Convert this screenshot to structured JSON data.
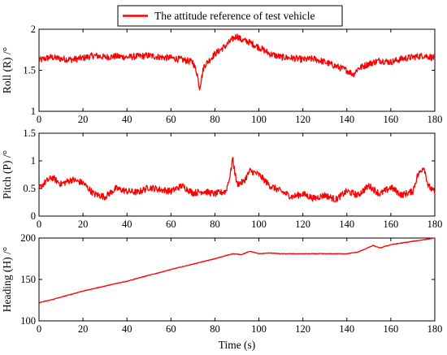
{
  "colors": {
    "series": "#ff0000",
    "axes": "#000000"
  },
  "legend": {
    "label": "The attitude reference of test vehicle",
    "placement": "top-center"
  },
  "xlabel": "Time (s)",
  "chart_data": [
    {
      "type": "line",
      "ylabel": "Roll (R) /°",
      "xlim": [
        0,
        180
      ],
      "ylim": [
        1,
        2
      ],
      "xticks": [
        "0",
        "20",
        "40",
        "60",
        "80",
        "100",
        "120",
        "140",
        "160",
        "180"
      ],
      "yticks": [
        "1",
        "1.5",
        "2"
      ],
      "series": [
        {
          "name": "The attitude reference of test vehicle",
          "x": [
            0,
            5,
            10,
            15,
            20,
            25,
            30,
            35,
            40,
            45,
            50,
            55,
            60,
            65,
            70,
            72,
            73,
            75,
            80,
            85,
            88,
            90,
            92,
            95,
            100,
            105,
            110,
            115,
            120,
            125,
            130,
            135,
            140,
            143,
            145,
            150,
            155,
            160,
            165,
            170,
            175,
            180
          ],
          "y": [
            1.62,
            1.66,
            1.64,
            1.63,
            1.65,
            1.68,
            1.66,
            1.67,
            1.66,
            1.67,
            1.68,
            1.66,
            1.65,
            1.63,
            1.6,
            1.45,
            1.28,
            1.55,
            1.7,
            1.8,
            1.88,
            1.92,
            1.87,
            1.85,
            1.78,
            1.7,
            1.66,
            1.65,
            1.63,
            1.64,
            1.6,
            1.55,
            1.5,
            1.45,
            1.52,
            1.58,
            1.62,
            1.6,
            1.64,
            1.66,
            1.68,
            1.65
          ]
        }
      ]
    },
    {
      "type": "line",
      "ylabel": "Pitch (P) /°",
      "xlim": [
        0,
        180
      ],
      "ylim": [
        0,
        1.5
      ],
      "xticks": [
        "0",
        "20",
        "40",
        "60",
        "80",
        "100",
        "120",
        "140",
        "160",
        "180"
      ],
      "yticks": [
        "0",
        "0.5",
        "1",
        "1.5"
      ],
      "series": [
        {
          "name": "The attitude reference of test vehicle",
          "x": [
            0,
            3,
            6,
            10,
            15,
            20,
            25,
            30,
            35,
            40,
            45,
            50,
            55,
            60,
            65,
            70,
            75,
            80,
            85,
            87,
            88,
            90,
            93,
            96,
            100,
            105,
            110,
            115,
            120,
            125,
            130,
            135,
            140,
            145,
            150,
            155,
            160,
            165,
            170,
            172,
            175,
            177,
            180
          ],
          "y": [
            0.5,
            0.62,
            0.7,
            0.58,
            0.66,
            0.6,
            0.4,
            0.35,
            0.5,
            0.45,
            0.43,
            0.52,
            0.48,
            0.45,
            0.55,
            0.42,
            0.45,
            0.4,
            0.45,
            0.75,
            1.05,
            0.58,
            0.62,
            0.82,
            0.75,
            0.55,
            0.45,
            0.35,
            0.4,
            0.32,
            0.38,
            0.3,
            0.45,
            0.38,
            0.55,
            0.4,
            0.52,
            0.38,
            0.45,
            0.72,
            0.9,
            0.55,
            0.42
          ]
        }
      ]
    },
    {
      "type": "line",
      "ylabel": "Heading (H) /°",
      "xlim": [
        0,
        180
      ],
      "ylim": [
        100,
        200
      ],
      "xticks": [
        "0",
        "20",
        "40",
        "60",
        "80",
        "100",
        "120",
        "140",
        "160",
        "180"
      ],
      "yticks": [
        "100",
        "150",
        "200"
      ],
      "series": [
        {
          "name": "The attitude reference of test vehicle",
          "x": [
            0,
            5,
            20,
            40,
            60,
            80,
            88,
            92,
            96,
            100,
            105,
            110,
            120,
            140,
            145,
            152,
            155,
            160,
            170,
            180
          ],
          "y": [
            122,
            125,
            136,
            148,
            162,
            175,
            181,
            180,
            184,
            181,
            182,
            181,
            181,
            181,
            183,
            191,
            188,
            192,
            196,
            200
          ]
        }
      ]
    }
  ]
}
